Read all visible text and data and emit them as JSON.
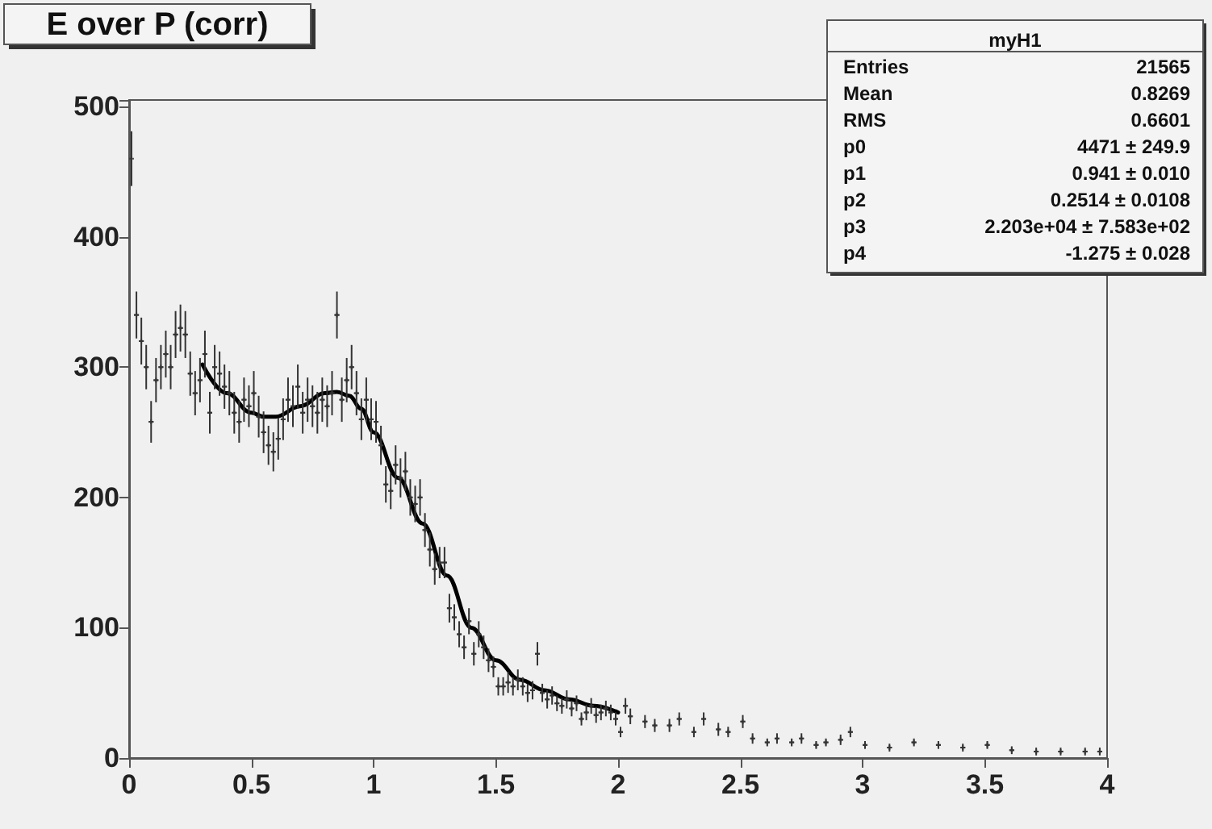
{
  "chart_data": {
    "type": "scatter",
    "title": "E over P (corr)",
    "annotations": [
      "myH1",
      "Entries\t21565",
      "Mean\t0.8269",
      "RMS\t0.6601",
      "p0\t4471 ± 249.9",
      "p1\t0.941 ± 0.010",
      "p2\t0.2514 ± 0.0108",
      "p3\t2.203e+04 ± 7.583e+02",
      "p4\t-1.275 ± 0.028"
    ],
    "xlim": [
      0,
      4
    ],
    "xticks": [
      0,
      0.5,
      1,
      1.5,
      2,
      2.5,
      3,
      3.5,
      4
    ],
    "ylim": [
      0,
      505
    ],
    "yticks": [
      0,
      100,
      200,
      300,
      400,
      500
    ],
    "grid": false,
    "marker": "cross",
    "line_style": "solid",
    "series": [
      {
        "type": "scatter",
        "color": "#333333",
        "x": [
          0.01,
          0.03,
          0.05,
          0.07,
          0.09,
          0.11,
          0.13,
          0.15,
          0.17,
          0.19,
          0.21,
          0.23,
          0.25,
          0.27,
          0.29,
          0.31,
          0.33,
          0.35,
          0.37,
          0.39,
          0.41,
          0.43,
          0.45,
          0.47,
          0.49,
          0.51,
          0.53,
          0.55,
          0.57,
          0.59,
          0.61,
          0.63,
          0.65,
          0.67,
          0.69,
          0.71,
          0.73,
          0.75,
          0.77,
          0.79,
          0.81,
          0.83,
          0.85,
          0.87,
          0.89,
          0.91,
          0.93,
          0.95,
          0.97,
          0.99,
          1.01,
          1.03,
          1.05,
          1.07,
          1.09,
          1.11,
          1.13,
          1.15,
          1.17,
          1.19,
          1.21,
          1.23,
          1.25,
          1.27,
          1.29,
          1.31,
          1.33,
          1.35,
          1.37,
          1.39,
          1.41,
          1.43,
          1.45,
          1.47,
          1.49,
          1.51,
          1.53,
          1.55,
          1.57,
          1.59,
          1.61,
          1.63,
          1.65,
          1.67,
          1.69,
          1.71,
          1.73,
          1.75,
          1.77,
          1.79,
          1.81,
          1.83,
          1.85,
          1.87,
          1.89,
          1.91,
          1.93,
          1.95,
          1.97,
          1.99,
          2.01,
          2.03,
          2.05,
          2.11,
          2.15,
          2.21,
          2.25,
          2.31,
          2.35,
          2.41,
          2.45,
          2.51,
          2.55,
          2.61,
          2.65,
          2.71,
          2.75,
          2.81,
          2.85,
          2.91,
          2.95,
          3.01,
          3.11,
          3.21,
          3.31,
          3.41,
          3.51,
          3.61,
          3.71,
          3.81,
          3.91,
          3.97
        ],
        "values": [
          460,
          340,
          320,
          300,
          258,
          290,
          300,
          310,
          300,
          325,
          330,
          325,
          295,
          280,
          290,
          310,
          265,
          300,
          295,
          285,
          280,
          265,
          258,
          275,
          270,
          280,
          262,
          250,
          240,
          235,
          245,
          260,
          275,
          270,
          285,
          265,
          275,
          270,
          265,
          275,
          270,
          280,
          340,
          275,
          290,
          300,
          280,
          260,
          275,
          260,
          258,
          240,
          210,
          205,
          225,
          215,
          220,
          200,
          195,
          200,
          175,
          160,
          145,
          150,
          150,
          115,
          108,
          95,
          85,
          105,
          80,
          95,
          85,
          75,
          70,
          55,
          55,
          58,
          55,
          60,
          55,
          50,
          52,
          80,
          50,
          45,
          48,
          42,
          40,
          45,
          38,
          42,
          30,
          35,
          40,
          33,
          35,
          38,
          35,
          30,
          20,
          40,
          32,
          28,
          25,
          25,
          30,
          20,
          30,
          22,
          20,
          28,
          15,
          12,
          15,
          12,
          15,
          10,
          12,
          14,
          20,
          10,
          8,
          12,
          10,
          8,
          10,
          6,
          5,
          5,
          5,
          5
        ],
        "errors": [
          21,
          18,
          18,
          17,
          16,
          17,
          17,
          18,
          17,
          18,
          18,
          18,
          17,
          17,
          17,
          18,
          16,
          17,
          17,
          17,
          17,
          16,
          16,
          17,
          16,
          17,
          16,
          16,
          15,
          15,
          16,
          16,
          17,
          16,
          17,
          16,
          17,
          16,
          16,
          17,
          16,
          17,
          18,
          17,
          17,
          17,
          17,
          16,
          17,
          16,
          16,
          15,
          14,
          14,
          15,
          15,
          15,
          14,
          14,
          14,
          13,
          13,
          12,
          12,
          12,
          11,
          10,
          10,
          9,
          10,
          9,
          10,
          9,
          9,
          8,
          7,
          7,
          8,
          7,
          8,
          7,
          7,
          7,
          9,
          7,
          7,
          7,
          6,
          6,
          7,
          6,
          6,
          5,
          6,
          6,
          6,
          6,
          6,
          6,
          5,
          4,
          6,
          6,
          5,
          5,
          5,
          5,
          4,
          5,
          5,
          4,
          5,
          4,
          3,
          4,
          3,
          4,
          3,
          3,
          4,
          4,
          3,
          3,
          3,
          3,
          3,
          3,
          3,
          3,
          3,
          3,
          3
        ],
        "xerrors": [
          null,
          0.01,
          0.01,
          0.01,
          0.01,
          0.01,
          0.01,
          0.01,
          0.01,
          0.01,
          0.01,
          0.01,
          0.01,
          0.01,
          0.01,
          0.01,
          0.01,
          0.01,
          0.01,
          0.01,
          0.01,
          0.01,
          0.01,
          0.01,
          0.01,
          0.01,
          0.01,
          0.01,
          0.01,
          0.01,
          0.01,
          0.01,
          0.01,
          0.01,
          0.01,
          0.01,
          0.01,
          0.01,
          0.01,
          0.01,
          0.01,
          0.01,
          0.01,
          0.01,
          0.01,
          0.01,
          0.01,
          0.01,
          0.01,
          0.01,
          0.01,
          0.01,
          0.01,
          0.01,
          0.01,
          0.01,
          0.01,
          0.01,
          0.01,
          0.01,
          0.01,
          0.01,
          0.01,
          0.01,
          0.01,
          0.01,
          0.01,
          0.01,
          0.01,
          0.01,
          0.01,
          0.01,
          0.01,
          0.01,
          0.01,
          0.01,
          0.01,
          0.01,
          0.01,
          0.01,
          0.01,
          0.01,
          0.01,
          0.01,
          0.01,
          0.01,
          0.01,
          0.01,
          0.01,
          0.01,
          0.01,
          0.01,
          0.01,
          0.01,
          0.01,
          0.01,
          0.01,
          0.01,
          0.01,
          0.01,
          0.01,
          0.01,
          0.01,
          0.01,
          0.01,
          0.01,
          0.01,
          0.01,
          0.01,
          0.01,
          0.01,
          0.01,
          0.01,
          0.01,
          0.01,
          0.01,
          0.01,
          0.01,
          0.01,
          0.01,
          0.01,
          0.01,
          0.01,
          0.01,
          0.01,
          0.01,
          0.01,
          0.01,
          0.01,
          0.01,
          0.01,
          0.01
        ]
      },
      {
        "type": "line",
        "color": "#000000",
        "marker": "none",
        "x": [
          0.3,
          0.4,
          0.5,
          0.55,
          0.6,
          0.7,
          0.8,
          0.85,
          0.9,
          0.95,
          1.0,
          1.1,
          1.2,
          1.3,
          1.4,
          1.5,
          1.6,
          1.7,
          1.8,
          1.9,
          2.0
        ],
        "values": [
          302,
          280,
          265,
          262,
          262,
          270,
          280,
          281,
          278,
          268,
          250,
          215,
          180,
          140,
          100,
          75,
          60,
          52,
          45,
          40,
          35
        ]
      }
    ]
  }
}
